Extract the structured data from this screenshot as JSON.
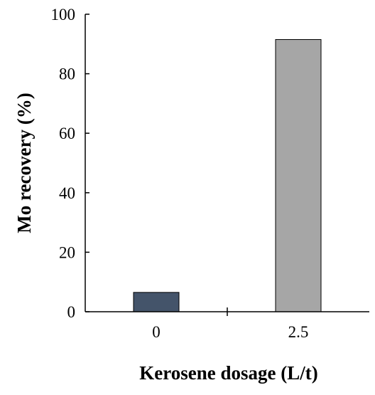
{
  "chart_data": {
    "type": "bar",
    "title": "",
    "xlabel": "Kerosene dosage (L/t)",
    "ylabel": "Mo recovery  (%)",
    "categories": [
      "0",
      "2.5"
    ],
    "values": [
      6.5,
      91.5
    ],
    "bar_colors": [
      "#44546a",
      "#a6a6a6"
    ],
    "ylim": [
      0,
      100
    ],
    "yticks": [
      0,
      20,
      40,
      60,
      80,
      100
    ],
    "grid": false,
    "legend": "none"
  }
}
